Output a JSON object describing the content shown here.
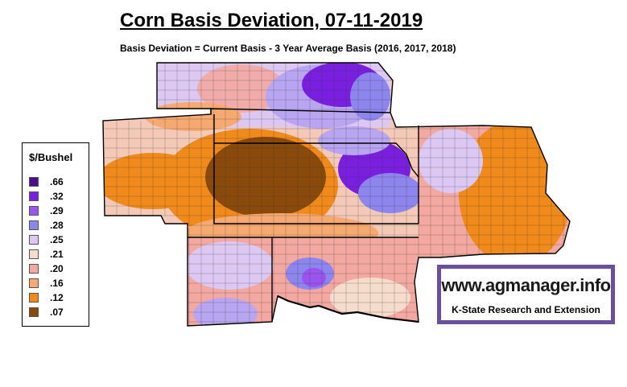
{
  "title": "Corn Basis Deviation, 07-11-2019",
  "subtitle": "Basis Deviation = Current Basis - 3 Year Average Basis (2016, 2017, 2018)",
  "legend": {
    "title": "$/Bushel",
    "items": [
      {
        "label": ".66",
        "color": "#4a0d8f"
      },
      {
        "label": ".32",
        "color": "#7a1fe0"
      },
      {
        "label": ".29",
        "color": "#9b55ee"
      },
      {
        "label": ".28",
        "color": "#8c86ee"
      },
      {
        "label": ".25",
        "color": "#dcc8f2"
      },
      {
        "label": ".21",
        "color": "#f6dccb"
      },
      {
        "label": ".20",
        "color": "#f3a8a2"
      },
      {
        "label": ".16",
        "color": "#f6a970"
      },
      {
        "label": ".12",
        "color": "#f08a1a"
      },
      {
        "label": ".07",
        "color": "#8a4a0c"
      }
    ]
  },
  "logo": {
    "url_text": "www.agmanager.info",
    "subtext": "K-State Research and Extension"
  }
}
